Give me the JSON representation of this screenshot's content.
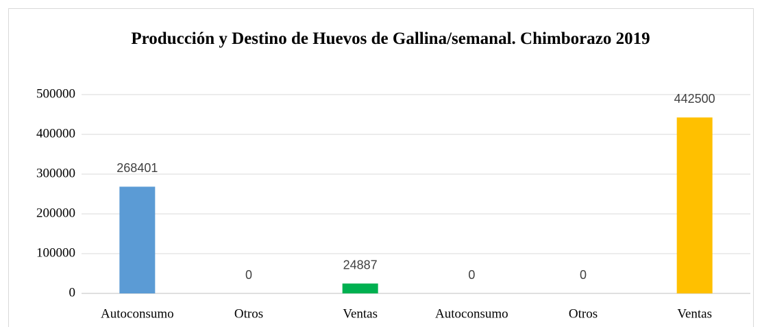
{
  "chart_data": {
    "type": "bar",
    "title": "Producción y Destino de Huevos de Gallina/semanal. Chimborazo 2019",
    "categories": [
      "Autoconsumo",
      "Otros",
      "Ventas",
      "Autoconsumo",
      "Otros",
      "Ventas"
    ],
    "values": [
      268401,
      0,
      24887,
      0,
      0,
      442500
    ],
    "colors": [
      "#5b9bd5",
      "#ed7d31",
      "#00b050",
      "#5b9bd5",
      "#ed7d31",
      "#ffc000"
    ],
    "ylim": [
      0,
      500000
    ],
    "yticks": [
      0,
      100000,
      200000,
      300000,
      400000,
      500000
    ],
    "grid": true
  }
}
